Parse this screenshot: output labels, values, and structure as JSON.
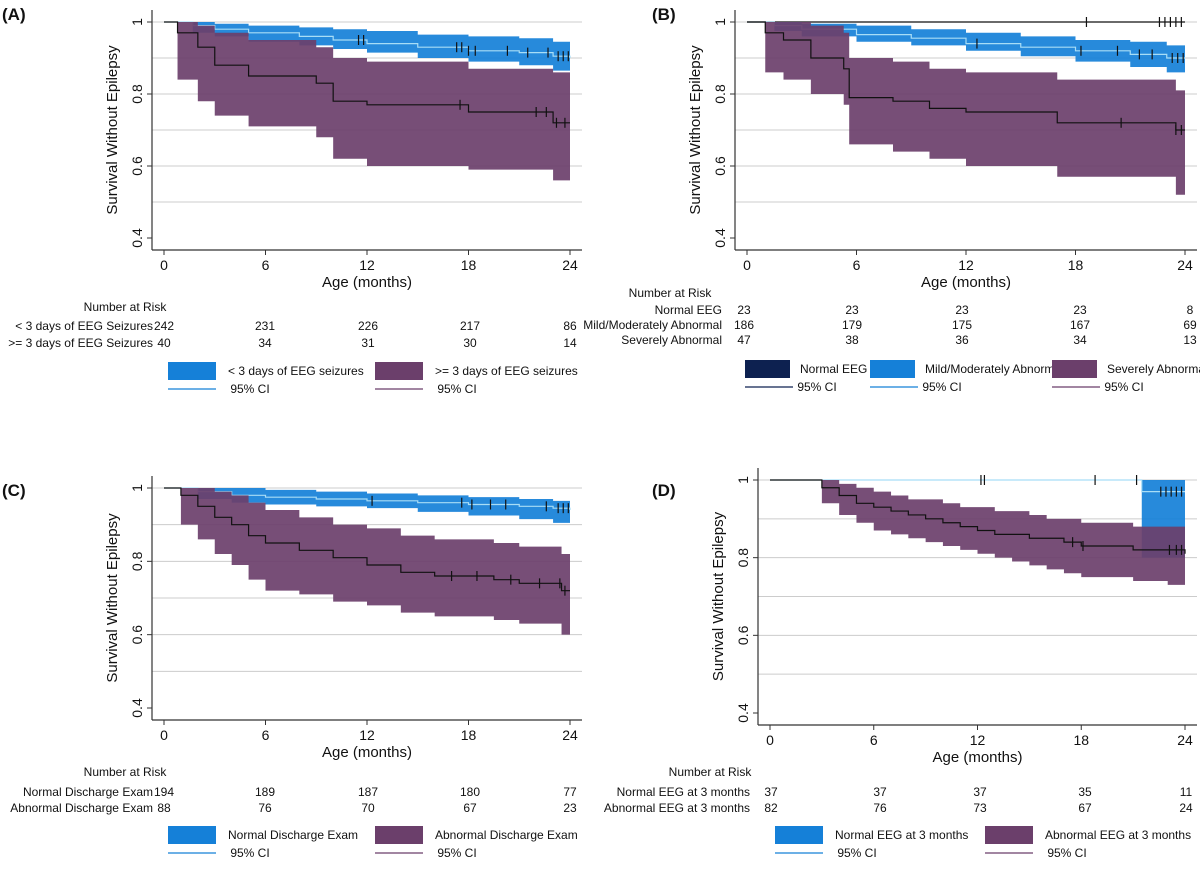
{
  "colors": {
    "blue": "#1580d8",
    "blue_line": "#a8ddf6",
    "purple": "#6b3f6b",
    "purple_line": "#111111",
    "navy": "#0d2150",
    "grid": "#cccccc",
    "axis": "#333333"
  },
  "chart_data": [
    {
      "type": "line",
      "subtype": "kaplan-meier",
      "panel_label": "(A)",
      "ylabel": "Survival Without Epilepsy",
      "xlabel": "Age (months)",
      "xlim": [
        0,
        24
      ],
      "ylim": [
        0.4,
        1.0
      ],
      "xticks": [
        0,
        6,
        12,
        18,
        24
      ],
      "xtick_labels": [
        "0",
        "6",
        "12",
        "18",
        "24"
      ],
      "yticks": [
        0.4,
        0.6,
        0.8,
        1.0
      ],
      "ytick_labels": [
        "0.4",
        "0.6",
        "0.8",
        "1"
      ],
      "risk_title": "Number at Risk",
      "risk_table": [
        {
          "label": "< 3 days of EEG Seizures",
          "values": [
            "242",
            "231",
            "226",
            "217",
            "86"
          ]
        },
        {
          "label": ">= 3 days of EEG Seizures",
          "values": [
            "40",
            "34",
            "31",
            "30",
            "14"
          ]
        }
      ],
      "series": [
        {
          "name": "< 3 days of EEG seizures",
          "color": "#1580d8",
          "line_color": "#a8ddf6",
          "x": [
            0,
            1.7,
            3,
            5,
            8,
            10,
            12,
            15,
            18,
            21,
            23,
            24
          ],
          "y": [
            1,
            0.99,
            0.98,
            0.97,
            0.96,
            0.95,
            0.94,
            0.93,
            0.92,
            0.915,
            0.905,
            0.9
          ],
          "lower": [
            1,
            0.97,
            0.96,
            0.945,
            0.935,
            0.925,
            0.915,
            0.9,
            0.89,
            0.88,
            0.865,
            0.84
          ],
          "upper": [
            1,
            1.0,
            0.995,
            0.99,
            0.985,
            0.98,
            0.975,
            0.965,
            0.96,
            0.955,
            0.945,
            0.94
          ],
          "censor": [
            11.5,
            11.8,
            17.3,
            17.6,
            18,
            18.4,
            20.3,
            21.5,
            22.7,
            23.3,
            23.6,
            23.9
          ]
        },
        {
          "name": ">= 3 days of EEG seizures",
          "color": "#6b3f6b",
          "line_color": "#111111",
          "x": [
            0,
            0.8,
            2,
            3,
            5,
            9,
            10,
            12,
            18,
            23,
            24
          ],
          "y": [
            1,
            0.97,
            0.93,
            0.88,
            0.85,
            0.83,
            0.78,
            0.77,
            0.75,
            0.72,
            0.72
          ],
          "lower": [
            1,
            0.84,
            0.78,
            0.74,
            0.71,
            0.68,
            0.62,
            0.6,
            0.59,
            0.56,
            0.56
          ],
          "upper": [
            1,
            1.0,
            0.99,
            0.97,
            0.95,
            0.93,
            0.9,
            0.89,
            0.87,
            0.86,
            0.86
          ],
          "censor": [
            17.5,
            22,
            22.6,
            23.2,
            23.7
          ]
        }
      ],
      "legend": [
        {
          "name": "< 3 days of EEG seizures",
          "kind": "band",
          "color": "#1580d8"
        },
        {
          "name": ">= 3 days of EEG seizures",
          "kind": "band",
          "color": "#6b3f6b"
        },
        {
          "name": "95% CI",
          "kind": "line",
          "color": "#1580d8"
        },
        {
          "name": "95% CI",
          "kind": "line",
          "color": "#6b3f6b"
        }
      ]
    },
    {
      "type": "line",
      "subtype": "kaplan-meier",
      "panel_label": "(B)",
      "ylabel": "Survival Without Epilepsy",
      "xlabel": "Age (months)",
      "xlim": [
        0,
        24
      ],
      "ylim": [
        0.4,
        1.0
      ],
      "xticks": [
        0,
        6,
        12,
        18,
        24
      ],
      "xtick_labels": [
        "0",
        "6",
        "12",
        "18",
        "24"
      ],
      "yticks": [
        0.4,
        0.6,
        0.8,
        1.0
      ],
      "ytick_labels": [
        "0.4",
        "0.6",
        "0.8",
        "1"
      ],
      "risk_title": "Number at Risk",
      "risk_table": [
        {
          "label": "Normal EEG",
          "values": [
            "23",
            "23",
            "23",
            "23",
            "8"
          ]
        },
        {
          "label": "Mild/Moderately Abnormal",
          "values": [
            "186",
            "179",
            "175",
            "167",
            "69"
          ]
        },
        {
          "label": "Severely Abnormal",
          "values": [
            "47",
            "38",
            "36",
            "34",
            "13"
          ]
        }
      ],
      "series": [
        {
          "name": "Normal EEG",
          "color": "#0d2150",
          "line_color": "#111111",
          "x": [
            0,
            24
          ],
          "y": [
            1,
            1
          ],
          "lower": [
            1,
            1
          ],
          "upper": [
            1,
            1
          ],
          "censor": [
            18.6,
            22.6,
            22.9,
            23.2,
            23.5,
            23.8
          ]
        },
        {
          "name": "Mild/Moderately Abnormal",
          "color": "#1580d8",
          "line_color": "#a8ddf6",
          "x": [
            0,
            1.5,
            3,
            6,
            9,
            12,
            15,
            18,
            21,
            23,
            24
          ],
          "y": [
            1,
            0.99,
            0.98,
            0.965,
            0.955,
            0.94,
            0.93,
            0.92,
            0.91,
            0.9,
            0.9
          ],
          "lower": [
            1,
            0.975,
            0.96,
            0.945,
            0.935,
            0.92,
            0.905,
            0.89,
            0.875,
            0.86,
            0.85
          ],
          "upper": [
            1,
            1.0,
            0.995,
            0.99,
            0.98,
            0.97,
            0.96,
            0.95,
            0.945,
            0.935,
            0.93
          ],
          "censor": [
            12.6,
            18.3,
            20.3,
            21.5,
            22.2,
            23.3,
            23.6,
            23.9
          ]
        },
        {
          "name": "Severely Abnormal",
          "color": "#6b3f6b",
          "line_color": "#111111",
          "x": [
            0,
            1,
            2,
            3.5,
            5.3,
            5.6,
            8,
            10,
            12,
            17,
            23.5,
            24
          ],
          "y": [
            1,
            0.97,
            0.95,
            0.9,
            0.87,
            0.79,
            0.78,
            0.76,
            0.75,
            0.72,
            0.7,
            0.7
          ],
          "lower": [
            1,
            0.86,
            0.84,
            0.8,
            0.77,
            0.66,
            0.64,
            0.62,
            0.6,
            0.57,
            0.52,
            0.52
          ],
          "upper": [
            1,
            1.0,
            1.0,
            0.99,
            0.97,
            0.9,
            0.89,
            0.87,
            0.86,
            0.84,
            0.81,
            0.81
          ],
          "censor": [
            20.5,
            23.5,
            23.8
          ]
        }
      ],
      "legend": [
        {
          "name": "Normal EEG",
          "kind": "band",
          "color": "#0d2150"
        },
        {
          "name": "Mild/Moderately Abnormal",
          "kind": "band",
          "color": "#1580d8"
        },
        {
          "name": "Severely Abnormal",
          "kind": "band",
          "color": "#6b3f6b"
        },
        {
          "name": "95% CI",
          "kind": "line",
          "color": "#0d2150"
        },
        {
          "name": "95% CI",
          "kind": "line",
          "color": "#1580d8"
        },
        {
          "name": "95% CI",
          "kind": "line",
          "color": "#6b3f6b"
        }
      ]
    },
    {
      "type": "line",
      "subtype": "kaplan-meier",
      "panel_label": "(C)",
      "ylabel": "Survival Without Epilepsy",
      "xlabel": "Age (months)",
      "xlim": [
        0,
        24
      ],
      "ylim": [
        0.4,
        1.0
      ],
      "xticks": [
        0,
        6,
        12,
        18,
        24
      ],
      "xtick_labels": [
        "0",
        "6",
        "12",
        "18",
        "24"
      ],
      "yticks": [
        0.4,
        0.6,
        0.8,
        1.0
      ],
      "ytick_labels": [
        "0.4",
        "0.6",
        "0.8",
        "1"
      ],
      "risk_title": "Number at Risk",
      "risk_table": [
        {
          "label": "Normal Discharge Exam",
          "values": [
            "194",
            "189",
            "187",
            "180",
            "77"
          ]
        },
        {
          "label": "Abnormal Discharge Exam",
          "values": [
            "88",
            "76",
            "70",
            "67",
            "23"
          ]
        }
      ],
      "series": [
        {
          "name": "Normal Discharge Exam",
          "color": "#1580d8",
          "line_color": "#a8ddf6",
          "x": [
            0,
            2,
            4,
            6,
            9,
            12,
            15,
            18,
            21,
            23,
            24
          ],
          "y": [
            1,
            0.99,
            0.98,
            0.975,
            0.97,
            0.965,
            0.96,
            0.955,
            0.95,
            0.945,
            0.94
          ],
          "lower": [
            1,
            0.97,
            0.96,
            0.955,
            0.95,
            0.945,
            0.935,
            0.925,
            0.915,
            0.905,
            0.89
          ],
          "upper": [
            1,
            1.0,
            1.0,
            0.995,
            0.99,
            0.985,
            0.98,
            0.975,
            0.97,
            0.965,
            0.96
          ],
          "censor": [
            12.3,
            17.6,
            18.2,
            19.3,
            20.2,
            22.6,
            23.3,
            23.6,
            23.9
          ]
        },
        {
          "name": "Abnormal Discharge Exam",
          "color": "#6b3f6b",
          "line_color": "#111111",
          "x": [
            0,
            1,
            2,
            3,
            4,
            5,
            6,
            8,
            10,
            12,
            14,
            16,
            18,
            19.5,
            21,
            23.5,
            24
          ],
          "y": [
            1,
            0.98,
            0.95,
            0.92,
            0.9,
            0.87,
            0.85,
            0.83,
            0.81,
            0.79,
            0.77,
            0.76,
            0.76,
            0.75,
            0.74,
            0.72,
            0.72
          ],
          "lower": [
            1,
            0.9,
            0.86,
            0.82,
            0.79,
            0.75,
            0.72,
            0.71,
            0.69,
            0.68,
            0.66,
            0.65,
            0.65,
            0.64,
            0.63,
            0.6,
            0.6
          ],
          "upper": [
            1,
            1.0,
            1.0,
            0.99,
            0.98,
            0.96,
            0.94,
            0.92,
            0.9,
            0.89,
            0.87,
            0.86,
            0.86,
            0.85,
            0.84,
            0.82,
            0.81
          ],
          "censor": [
            17,
            18.5,
            20.5,
            22.2,
            23.4,
            23.7
          ]
        }
      ],
      "legend": [
        {
          "name": "Normal Discharge Exam",
          "kind": "band",
          "color": "#1580d8"
        },
        {
          "name": "Abnormal Discharge Exam",
          "kind": "band",
          "color": "#6b3f6b"
        },
        {
          "name": "95% CI",
          "kind": "line",
          "color": "#1580d8"
        },
        {
          "name": "95% CI",
          "kind": "line",
          "color": "#6b3f6b"
        }
      ]
    },
    {
      "type": "line",
      "subtype": "kaplan-meier",
      "panel_label": "(D)",
      "ylabel": "Survival Without Epilepsy",
      "xlabel": "Age (months)",
      "xlim": [
        0,
        24
      ],
      "ylim": [
        0.4,
        1.0
      ],
      "xticks": [
        0,
        6,
        12,
        18,
        24
      ],
      "xtick_labels": [
        "0",
        "6",
        "12",
        "18",
        "24"
      ],
      "yticks": [
        0.4,
        0.6,
        0.8,
        1.0
      ],
      "ytick_labels": [
        "0.4",
        "0.6",
        "0.8",
        "1"
      ],
      "risk_title": "Number at Risk",
      "risk_table": [
        {
          "label": "Normal EEG at 3 months",
          "values": [
            "37",
            "37",
            "37",
            "35",
            "11"
          ]
        },
        {
          "label": "Abnormal EEG at 3 months",
          "values": [
            "82",
            "76",
            "73",
            "67",
            "24"
          ]
        }
      ],
      "series": [
        {
          "name": "Normal EEG at 3 months",
          "color": "#1580d8",
          "line_color": "#a8ddf6",
          "x": [
            0,
            21.5,
            21.5,
            24
          ],
          "y": [
            1,
            1,
            0.97,
            0.97
          ],
          "lower": [
            1,
            1,
            0.8,
            0.8
          ],
          "upper": [
            1,
            1,
            1.0,
            1.0
          ],
          "censor": [
            12.2,
            12.4,
            18.8,
            21.2,
            22.6,
            22.9,
            23.2,
            23.5,
            23.8
          ]
        },
        {
          "name": "Abnormal EEG at 3 months",
          "color": "#6b3f6b",
          "line_color": "#111111",
          "x": [
            0,
            2.5,
            3,
            4,
            5,
            6,
            7,
            8,
            9,
            10,
            11,
            12,
            13,
            14,
            15,
            16,
            17,
            18,
            19,
            21,
            23,
            24
          ],
          "y": [
            1,
            1,
            0.98,
            0.96,
            0.94,
            0.93,
            0.92,
            0.91,
            0.9,
            0.89,
            0.88,
            0.87,
            0.86,
            0.86,
            0.85,
            0.85,
            0.84,
            0.83,
            0.83,
            0.82,
            0.82,
            0.81
          ],
          "lower": [
            1,
            1,
            0.94,
            0.91,
            0.89,
            0.87,
            0.86,
            0.85,
            0.84,
            0.83,
            0.82,
            0.81,
            0.8,
            0.79,
            0.78,
            0.77,
            0.76,
            0.75,
            0.75,
            0.74,
            0.73,
            0.7
          ],
          "upper": [
            1,
            1,
            1.0,
            0.99,
            0.98,
            0.97,
            0.96,
            0.95,
            0.95,
            0.94,
            0.93,
            0.93,
            0.92,
            0.92,
            0.91,
            0.9,
            0.9,
            0.89,
            0.89,
            0.88,
            0.88,
            0.87
          ],
          "censor": [
            17.5,
            18.1,
            23.1,
            23.5,
            23.8
          ]
        }
      ],
      "legend": [
        {
          "name": "Normal EEG at 3 months",
          "kind": "band",
          "color": "#1580d8"
        },
        {
          "name": "Abnormal EEG at 3 months",
          "kind": "band",
          "color": "#6b3f6b"
        },
        {
          "name": "95% CI",
          "kind": "line",
          "color": "#1580d8"
        },
        {
          "name": "95% CI",
          "kind": "line",
          "color": "#6b3f6b"
        }
      ]
    }
  ]
}
